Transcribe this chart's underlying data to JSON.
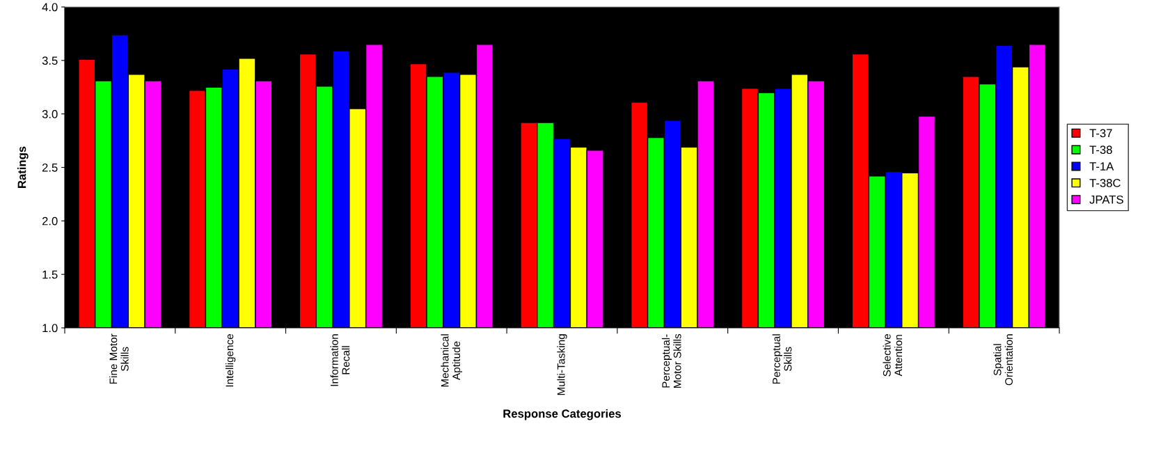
{
  "chart_data": {
    "type": "bar",
    "xlabel": "Response Categories",
    "ylabel": "Ratings",
    "categories": [
      "Fine Motor\nSkills",
      "Intelligence",
      "Information\nRecall",
      "Mechanical\nAptitude",
      "Multi-Tasking",
      "Perceptual-\nMotor Skills",
      "Perceptual\nSkills",
      "Selective\nAttention",
      "Spatial\nOrientation"
    ],
    "series": [
      {
        "name": "T-37",
        "color": "#ff0000",
        "values": [
          3.51,
          3.22,
          3.56,
          3.47,
          2.92,
          3.11,
          3.24,
          3.56,
          3.35
        ]
      },
      {
        "name": "T-38",
        "color": "#00ff00",
        "values": [
          3.31,
          3.25,
          3.26,
          3.35,
          2.92,
          2.78,
          3.2,
          2.42,
          3.28
        ]
      },
      {
        "name": "T-1A",
        "color": "#0000ff",
        "values": [
          3.74,
          3.42,
          3.59,
          3.39,
          2.77,
          2.94,
          3.24,
          2.46,
          3.64
        ]
      },
      {
        "name": "T-38C",
        "color": "#ffff00",
        "values": [
          3.37,
          3.52,
          3.05,
          3.37,
          2.69,
          2.69,
          3.37,
          2.45,
          3.44
        ]
      },
      {
        "name": "JPATS",
        "color": "#ff00ff",
        "values": [
          3.31,
          3.31,
          3.65,
          3.65,
          2.66,
          3.31,
          3.31,
          2.98,
          3.65
        ]
      }
    ],
    "ylim": [
      1.0,
      4.0
    ],
    "yticks": [
      {
        "value": 1.0,
        "label": "1.0"
      },
      {
        "value": 1.5,
        "label": "1.5"
      },
      {
        "value": 2.0,
        "label": "2.0"
      },
      {
        "value": 2.5,
        "label": "2.5"
      },
      {
        "value": 3.0,
        "label": "3.0"
      },
      {
        "value": 3.5,
        "label": "3.5"
      },
      {
        "value": 4.0,
        "label": "4.0"
      }
    ],
    "grid": false,
    "legend": "right"
  }
}
